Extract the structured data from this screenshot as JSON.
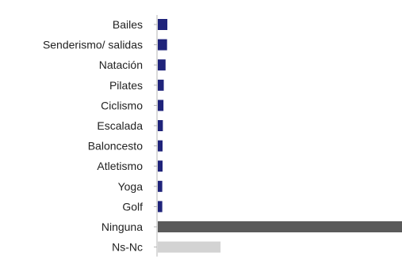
{
  "chart_data": {
    "type": "bar",
    "orientation": "horizontal",
    "title": "",
    "xlabel": "",
    "ylabel": "",
    "xlim": [
      0,
      82
    ],
    "grid": false,
    "legend": "none",
    "categories": [
      "Bailes",
      "Senderismo/ salidas",
      "Natación",
      "Pilates",
      "Ciclismo",
      "Escalada",
      "Baloncesto",
      "Atletismo",
      "Yoga",
      "Golf",
      "Ninguna",
      "Ns-Nc"
    ],
    "values": [
      3.2,
      3.1,
      2.6,
      2.0,
      1.9,
      1.7,
      1.6,
      1.6,
      1.5,
      1.5,
      83,
      21
    ],
    "colors": [
      "#1f237a",
      "#1f237a",
      "#1f237a",
      "#1f237a",
      "#1f237a",
      "#1f237a",
      "#1f237a",
      "#1f237a",
      "#1f237a",
      "#1f237a",
      "#5a5a5a",
      "#d3d3d3"
    ]
  }
}
